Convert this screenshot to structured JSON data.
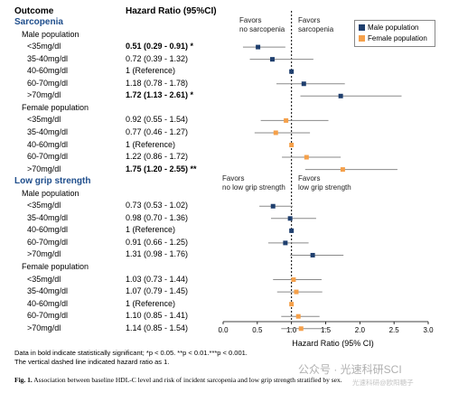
{
  "header": {
    "col_outcome": "Outcome",
    "col_hr": "Hazard Ratio (95%CI)"
  },
  "legend": {
    "male": "Male population",
    "female": "Female population",
    "male_color": "#1f3f6e",
    "female_color": "#f5a04a"
  },
  "favors": {
    "sarc_left": [
      "Favors",
      "no sarcopenia"
    ],
    "sarc_right": [
      "Favors",
      "sarcopenia"
    ],
    "grip_left": [
      "Favors",
      "no low grip strength"
    ],
    "grip_right": [
      "Favors",
      "low grip strength"
    ]
  },
  "notes": [
    "Data in bold indicate statistically significant; *p < 0.05. **p < 0.01.***p < 0.001.",
    "The vertical dashed line indicated hazard ratio as 1."
  ],
  "caption": {
    "lead": "Fig. 1.",
    "text": "Association between baseline HDL-C level and risk of incident sarcopenia and low grip strength stratified by sex."
  },
  "watermark": "公众号 · 光速科研SCI",
  "watermark2": "光速科研@欧阳糖子",
  "rows": [
    {
      "kind": "section",
      "label": "Sarcopenia"
    },
    {
      "kind": "group",
      "label": "Male population"
    },
    {
      "kind": "data",
      "label": "<35mg/dl",
      "hr": "0.51 (0.29 - 0.91) *",
      "bold": true,
      "sex": "male"
    },
    {
      "kind": "data",
      "label": "35-40mg/dl",
      "hr": "0.72 (0.39 - 1.32)",
      "bold": false,
      "sex": "male"
    },
    {
      "kind": "data",
      "label": "40-60mg/dl",
      "hr": "1 (Reference)",
      "bold": false,
      "sex": "male"
    },
    {
      "kind": "data",
      "label": "60-70mg/dl",
      "hr": "1.18 (0.78 - 1.78)",
      "bold": false,
      "sex": "male"
    },
    {
      "kind": "data",
      "label": ">70mg/dl",
      "hr": "1.72 (1.13 - 2.61) *",
      "bold": true,
      "sex": "male"
    },
    {
      "kind": "group",
      "label": "Female population"
    },
    {
      "kind": "data",
      "label": "<35mg/dl",
      "hr": "0.92 (0.55 - 1.54)",
      "bold": false,
      "sex": "female"
    },
    {
      "kind": "data",
      "label": "35-40mg/dl",
      "hr": "0.77 (0.46 - 1.27)",
      "bold": false,
      "sex": "female"
    },
    {
      "kind": "data",
      "label": "40-60mg/dl",
      "hr": "1 (Reference)",
      "bold": false,
      "sex": "female"
    },
    {
      "kind": "data",
      "label": "60-70mg/dl",
      "hr": "1.22 (0.86 - 1.72)",
      "bold": false,
      "sex": "female"
    },
    {
      "kind": "data",
      "label": ">70mg/dl",
      "hr": "1.75 (1.20 - 2.55) **",
      "bold": true,
      "sex": "female"
    },
    {
      "kind": "section",
      "label": "Low grip strength"
    },
    {
      "kind": "group",
      "label": "Male population"
    },
    {
      "kind": "data",
      "label": "<35mg/dl",
      "hr": "0.73 (0.53 - 1.02)",
      "bold": false,
      "sex": "male"
    },
    {
      "kind": "data",
      "label": "35-40mg/dl",
      "hr": "0.98 (0.70 - 1.36)",
      "bold": false,
      "sex": "male"
    },
    {
      "kind": "data",
      "label": "40-60mg/dl",
      "hr": "1 (Reference)",
      "bold": false,
      "sex": "male"
    },
    {
      "kind": "data",
      "label": "60-70mg/dl",
      "hr": "0.91 (0.66 - 1.25)",
      "bold": false,
      "sex": "male"
    },
    {
      "kind": "data",
      "label": ">70mg/dl",
      "hr": "1.31 (0.98 - 1.76)",
      "bold": false,
      "sex": "male"
    },
    {
      "kind": "group",
      "label": "Female population"
    },
    {
      "kind": "data",
      "label": "<35mg/dl",
      "hr": "1.03 (0.73 - 1.44)",
      "bold": false,
      "sex": "female"
    },
    {
      "kind": "data",
      "label": "35-40mg/dl",
      "hr": "1.07 (0.79 - 1.45)",
      "bold": false,
      "sex": "female"
    },
    {
      "kind": "data",
      "label": "40-60mg/dl",
      "hr": "1 (Reference)",
      "bold": false,
      "sex": "female"
    },
    {
      "kind": "data",
      "label": "60-70mg/dl",
      "hr": "1.10 (0.85 - 1.41)",
      "bold": false,
      "sex": "female"
    },
    {
      "kind": "data",
      "label": ">70mg/dl",
      "hr": "1.14 (0.85 - 1.54)",
      "bold": false,
      "sex": "female"
    }
  ],
  "chart_data": {
    "type": "scatter",
    "xlabel": "Hazard Ratio (95% CI)",
    "xlim": [
      0.0,
      3.0
    ],
    "x_ticks": [
      "0.0",
      "0.5",
      "1.0",
      "1.5",
      "2.0",
      "2.5",
      "3.0"
    ],
    "reference_line": 1.0,
    "series": [
      {
        "name": "Male population",
        "points": [
          {
            "outcome": "Sarcopenia",
            "category": "<35mg/dl",
            "hr": 0.51,
            "lo": 0.29,
            "hi": 0.91
          },
          {
            "outcome": "Sarcopenia",
            "category": "35-40mg/dl",
            "hr": 0.72,
            "lo": 0.39,
            "hi": 1.32
          },
          {
            "outcome": "Sarcopenia",
            "category": "40-60mg/dl",
            "hr": 1.0,
            "lo": null,
            "hi": null
          },
          {
            "outcome": "Sarcopenia",
            "category": "60-70mg/dl",
            "hr": 1.18,
            "lo": 0.78,
            "hi": 1.78
          },
          {
            "outcome": "Sarcopenia",
            "category": ">70mg/dl",
            "hr": 1.72,
            "lo": 1.13,
            "hi": 2.61
          },
          {
            "outcome": "Low grip strength",
            "category": "<35mg/dl",
            "hr": 0.73,
            "lo": 0.53,
            "hi": 1.02
          },
          {
            "outcome": "Low grip strength",
            "category": "35-40mg/dl",
            "hr": 0.98,
            "lo": 0.7,
            "hi": 1.36
          },
          {
            "outcome": "Low grip strength",
            "category": "40-60mg/dl",
            "hr": 1.0,
            "lo": null,
            "hi": null
          },
          {
            "outcome": "Low grip strength",
            "category": "60-70mg/dl",
            "hr": 0.91,
            "lo": 0.66,
            "hi": 1.25
          },
          {
            "outcome": "Low grip strength",
            "category": ">70mg/dl",
            "hr": 1.31,
            "lo": 0.98,
            "hi": 1.76
          }
        ]
      },
      {
        "name": "Female population",
        "points": [
          {
            "outcome": "Sarcopenia",
            "category": "<35mg/dl",
            "hr": 0.92,
            "lo": 0.55,
            "hi": 1.54
          },
          {
            "outcome": "Sarcopenia",
            "category": "35-40mg/dl",
            "hr": 0.77,
            "lo": 0.46,
            "hi": 1.27
          },
          {
            "outcome": "Sarcopenia",
            "category": "40-60mg/dl",
            "hr": 1.0,
            "lo": null,
            "hi": null
          },
          {
            "outcome": "Sarcopenia",
            "category": "60-70mg/dl",
            "hr": 1.22,
            "lo": 0.86,
            "hi": 1.72
          },
          {
            "outcome": "Sarcopenia",
            "category": ">70mg/dl",
            "hr": 1.75,
            "lo": 1.2,
            "hi": 2.55
          },
          {
            "outcome": "Low grip strength",
            "category": "<35mg/dl",
            "hr": 1.03,
            "lo": 0.73,
            "hi": 1.44
          },
          {
            "outcome": "Low grip strength",
            "category": "35-40mg/dl",
            "hr": 1.07,
            "lo": 0.79,
            "hi": 1.45
          },
          {
            "outcome": "Low grip strength",
            "category": "40-60mg/dl",
            "hr": 1.0,
            "lo": null,
            "hi": null
          },
          {
            "outcome": "Low grip strength",
            "category": "60-70mg/dl",
            "hr": 1.1,
            "lo": 0.85,
            "hi": 1.41
          },
          {
            "outcome": "Low grip strength",
            "category": ">70mg/dl",
            "hr": 1.14,
            "lo": 0.85,
            "hi": 1.54
          }
        ]
      }
    ]
  }
}
